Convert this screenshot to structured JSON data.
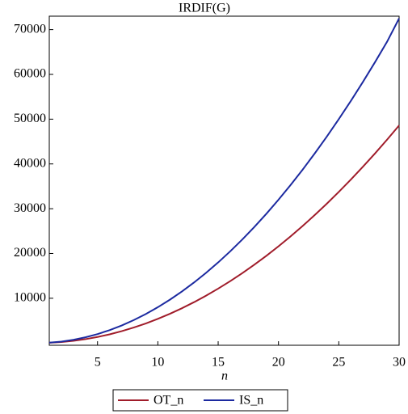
{
  "chart_data": {
    "type": "line",
    "title": "IRDIF(G)",
    "x_label": "n",
    "x": [
      1,
      2,
      3,
      4,
      5,
      6,
      7,
      8,
      9,
      10,
      11,
      12,
      13,
      14,
      15,
      16,
      17,
      18,
      19,
      20,
      21,
      22,
      23,
      24,
      25,
      26,
      27,
      28,
      29,
      30
    ],
    "series": [
      {
        "name": "OT_n",
        "color": "#a01c2a",
        "values": [
          54,
          216,
          486,
          864,
          1350,
          1944,
          2646,
          3456,
          4374,
          5400,
          6534,
          7776,
          9126,
          10584,
          12150,
          13824,
          15606,
          17496,
          19494,
          21600,
          23814,
          26136,
          28566,
          31104,
          33750,
          36504,
          39366,
          42336,
          45414,
          48600
        ]
      },
      {
        "name": "IS_n",
        "color": "#1c2aa0",
        "values": [
          80,
          320,
          720,
          1280,
          2000,
          2880,
          3920,
          5120,
          6480,
          8000,
          9680,
          11520,
          13520,
          15680,
          18000,
          20480,
          23120,
          25920,
          28880,
          32000,
          35280,
          38720,
          42320,
          46080,
          50000,
          54080,
          58320,
          62720,
          67280,
          72500
        ]
      }
    ],
    "xlim": [
      1,
      30
    ],
    "xticks": [
      5,
      10,
      15,
      20,
      25,
      30
    ],
    "ylim": [
      -500,
      73000
    ],
    "yticks": [
      10000,
      20000,
      30000,
      40000,
      50000,
      60000,
      70000
    ],
    "grid": false,
    "legend": "bottom"
  }
}
